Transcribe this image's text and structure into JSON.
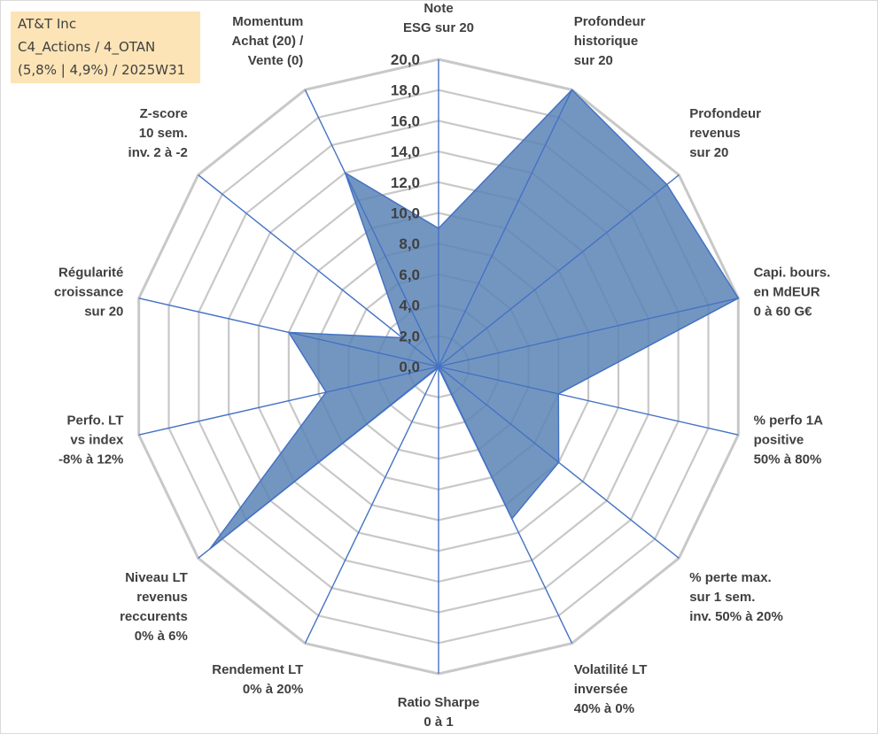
{
  "info_box": {
    "lines": [
      "AT&T Inc",
      "C4_Actions / 4_OTAN",
      "(5,8% | 4,9%) / 2025W31"
    ]
  },
  "colors": {
    "fill": "#5b84b6",
    "stroke": "#4472c4",
    "grid": "#c8c8c8",
    "info_bg": "#fce4b6"
  },
  "chart_data": {
    "type": "radar",
    "rlim": [
      0,
      20
    ],
    "tick_labels": [
      "0,0",
      "2,0",
      "4,0",
      "6,0",
      "8,0",
      "10,0",
      "12,0",
      "14,0",
      "16,0",
      "18,0",
      "20,0"
    ],
    "categories": [
      [
        "Note",
        "ESG sur 20"
      ],
      [
        "Profondeur",
        "historique",
        "sur 20"
      ],
      [
        "Profondeur",
        "revenus",
        "sur 20"
      ],
      [
        "Capi. bours.",
        "en MdEUR",
        "0 à 60 G€"
      ],
      [
        "% perfo 1A",
        "positive",
        "50% à 80%"
      ],
      [
        "% perte max.",
        "sur 1 sem.",
        "inv. 50% à 20%"
      ],
      [
        "Volatilité LT",
        "inversée",
        "40% à 0%"
      ],
      [
        "Ratio Sharpe",
        "0 à 1"
      ],
      [
        "Rendement LT",
        "0% à 20%"
      ],
      [
        "Niveau LT",
        "revenus",
        "reccurents",
        "0% à 6%"
      ],
      [
        "Perfo. LT",
        "vs index",
        "-8% à 12%"
      ],
      [
        "Régularité",
        "croissance",
        "sur 20"
      ],
      [
        "Z-score",
        "10 sem.",
        "inv. 2 à -2"
      ],
      [
        "Momentum",
        "Achat (20) /",
        "Vente (0)"
      ]
    ],
    "series": [
      {
        "values": [
          9.0,
          20.0,
          19.0,
          20.0,
          8.0,
          10.0,
          11.0,
          0.1,
          0.1,
          19.0,
          7.5,
          10.0,
          3.0,
          14.0
        ]
      }
    ],
    "grid": true,
    "legend": "none"
  }
}
